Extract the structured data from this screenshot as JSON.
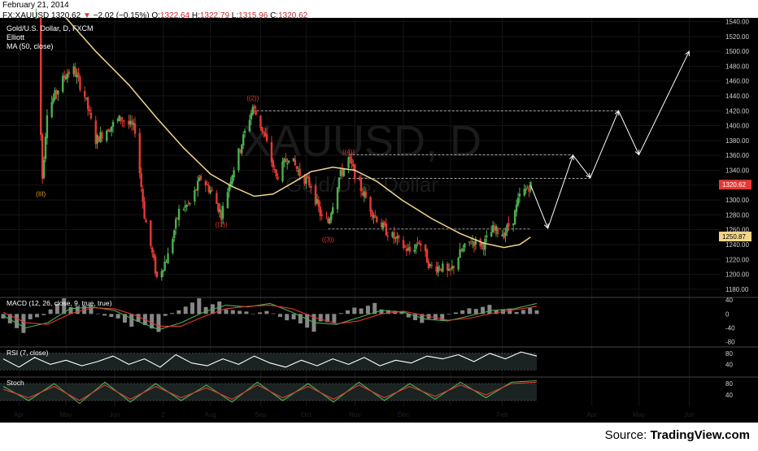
{
  "header": {
    "date": "February 21, 2014",
    "symbol": "FX:XAUUSD",
    "last": "1320.62",
    "change": "−2.02 (−0.15%)",
    "o_label": "O:",
    "o": "1322.64",
    "h_label": "H:",
    "h": "1322.79",
    "l_label": "L:",
    "l": "1315.96",
    "c_label": "C:",
    "c": "1320.62"
  },
  "panel": {
    "title": "Gold/U.S. Dollar, D, FXCM",
    "study1": "Elliott",
    "study2": "MA (50, close)",
    "watermark_big": "XAUUSD, D",
    "watermark_small": "Gold/U.S. Dollar"
  },
  "indicators": {
    "macd_label": "MACD (12, 26, close, 9, true, true)",
    "rsi_label": "RSI (7, close)",
    "stoch_label": "Stoch"
  },
  "source": {
    "prefix": "Source: ",
    "brand": "TradingView.com"
  },
  "colors": {
    "background": "#000000",
    "bull": "#4caf50",
    "bear": "#e53935",
    "ma": "#f2d58a",
    "wave_label": "#e53935",
    "wave_label_iii": "#f5a623",
    "macd_line": "#4caf50",
    "signal_line": "#e53935",
    "hist": "#9e9e9e",
    "rsi": "#ffffff",
    "stoch_k": "#4caf50",
    "stoch_d": "#e53935",
    "price_tag_last": "#e53935",
    "price_tag_ma": "#f2d58a"
  },
  "chart_data": [
    {
      "type": "candlestick",
      "title": "Gold/U.S. Dollar, D, FXCM",
      "x_ticks": [
        "Apr",
        "May",
        "Jun",
        "2",
        "Aug",
        "Sep",
        "Oct",
        "Nov",
        "Dec",
        "2014",
        "Feb",
        "Apr",
        "May",
        "Jun"
      ],
      "x_tick_dates": [
        "2013-04-01",
        "2013-05-01",
        "2013-06-01",
        "2013-07-02",
        "2013-08-01",
        "2013-09-02",
        "2013-10-01",
        "2013-11-01",
        "2013-12-02",
        "2014-01-01",
        "2014-02-03",
        "2014-04-01",
        "2014-05-01",
        "2014-06-02"
      ],
      "y_ticks": [
        1180,
        1200,
        1220,
        1240,
        1260,
        1280,
        1300,
        1320,
        1340,
        1360,
        1380,
        1400,
        1420,
        1440,
        1460,
        1480,
        1500,
        1520,
        1540
      ],
      "ylim": [
        1170,
        1545
      ],
      "last_price": "1320.62",
      "ma_value": "1250.87",
      "price_path": [
        [
          "2013-04-12",
          1560
        ],
        [
          "2013-04-16",
          1330
        ],
        [
          "2013-04-19",
          1420
        ],
        [
          "2013-05-01",
          1470
        ],
        [
          "2013-05-06",
          1475
        ],
        [
          "2013-05-13",
          1440
        ],
        [
          "2013-05-20",
          1380
        ],
        [
          "2013-05-27",
          1395
        ],
        [
          "2013-06-05",
          1410
        ],
        [
          "2013-06-14",
          1395
        ],
        [
          "2013-06-20",
          1280
        ],
        [
          "2013-06-28",
          1195
        ],
        [
          "2013-07-05",
          1225
        ],
        [
          "2013-07-12",
          1285
        ],
        [
          "2013-07-19",
          1295
        ],
        [
          "2013-07-26",
          1330
        ],
        [
          "2013-08-02",
          1310
        ],
        [
          "2013-08-08",
          1280
        ],
        [
          "2013-08-14",
          1330
        ],
        [
          "2013-08-20",
          1370
        ],
        [
          "2013-08-28",
          1425
        ],
        [
          "2013-09-04",
          1390
        ],
        [
          "2013-09-12",
          1330
        ],
        [
          "2013-09-20",
          1360
        ],
        [
          "2013-09-27",
          1335
        ],
        [
          "2013-10-04",
          1320
        ],
        [
          "2013-10-11",
          1275
        ],
        [
          "2013-10-15",
          1270
        ],
        [
          "2013-10-22",
          1330
        ],
        [
          "2013-10-28",
          1355
        ],
        [
          "2013-11-05",
          1315
        ],
        [
          "2013-11-12",
          1285
        ],
        [
          "2013-11-20",
          1260
        ],
        [
          "2013-11-28",
          1245
        ],
        [
          "2013-12-06",
          1230
        ],
        [
          "2013-12-12",
          1245
        ],
        [
          "2013-12-19",
          1210
        ],
        [
          "2013-12-26",
          1210
        ],
        [
          "2013-12-31",
          1200
        ],
        [
          "2014-01-07",
          1228
        ],
        [
          "2014-01-14",
          1245
        ],
        [
          "2014-01-22",
          1240
        ],
        [
          "2014-01-28",
          1260
        ],
        [
          "2014-02-04",
          1255
        ],
        [
          "2014-02-10",
          1275
        ],
        [
          "2014-02-14",
          1305
        ],
        [
          "2014-02-21",
          1320
        ]
      ],
      "ma_path": [
        [
          "2013-05-01",
          1545
        ],
        [
          "2013-05-20",
          1500
        ],
        [
          "2013-06-10",
          1455
        ],
        [
          "2013-06-28",
          1410
        ],
        [
          "2013-07-15",
          1370
        ],
        [
          "2013-08-01",
          1335
        ],
        [
          "2013-08-15",
          1318
        ],
        [
          "2013-08-29",
          1305
        ],
        [
          "2013-09-10",
          1308
        ],
        [
          "2013-09-24",
          1325
        ],
        [
          "2013-10-04",
          1338
        ],
        [
          "2013-10-18",
          1344
        ],
        [
          "2013-11-01",
          1340
        ],
        [
          "2013-11-15",
          1325
        ],
        [
          "2013-12-01",
          1300
        ],
        [
          "2013-12-20",
          1275
        ],
        [
          "2014-01-07",
          1255
        ],
        [
          "2014-01-22",
          1242
        ],
        [
          "2014-02-04",
          1236
        ],
        [
          "2014-02-14",
          1240
        ],
        [
          "2014-02-21",
          1250
        ]
      ],
      "wave_labels": [
        {
          "text": "(III)",
          "date": "2013-04-15",
          "price": 1305
        },
        {
          "text": "((1))",
          "date": "2013-08-08",
          "price": 1264
        },
        {
          "text": "((2))",
          "date": "2013-08-28",
          "price": 1434
        },
        {
          "text": "((3))",
          "date": "2013-10-15",
          "price": 1244
        },
        {
          "text": "((4))",
          "date": "2013-10-28",
          "price": 1362
        }
      ],
      "levels": [
        {
          "date_from": "2013-08-28",
          "date_to": "2014-04-18",
          "price": 1420
        },
        {
          "date_from": "2013-10-28",
          "date_to": "2014-03-20",
          "price": 1361
        },
        {
          "date_from": "2013-10-28",
          "date_to": "2014-03-31",
          "price": 1329
        },
        {
          "date_from": "2013-10-15",
          "date_to": "2014-02-21",
          "price": 1261
        }
      ],
      "projection": [
        [
          "2014-02-21",
          1320
        ],
        [
          "2014-03-04",
          1262
        ],
        [
          "2014-03-20",
          1360
        ],
        [
          "2014-03-31",
          1330
        ],
        [
          "2014-04-18",
          1420
        ],
        [
          "2014-05-01",
          1361
        ],
        [
          "2014-06-02",
          1500
        ]
      ]
    },
    {
      "type": "line",
      "title": "MACD (12, 26, close, 9, true, true)",
      "y_ticks": [
        40,
        0,
        -40,
        -80
      ],
      "ylim": [
        -90,
        45
      ],
      "series": [
        {
          "name": "MACD",
          "color": "#4caf50",
          "values": [
            -5,
            -40,
            -25,
            15,
            20,
            10,
            -20,
            -45,
            -25,
            5,
            25,
            20,
            30,
            5,
            -25,
            -30,
            -10,
            10,
            5,
            -15,
            -20,
            -5,
            10,
            15,
            30
          ]
        },
        {
          "name": "Signal",
          "color": "#e53935",
          "values": [
            5,
            -25,
            -30,
            0,
            18,
            15,
            -5,
            -35,
            -35,
            -8,
            15,
            22,
            25,
            15,
            -10,
            -28,
            -20,
            0,
            8,
            -5,
            -18,
            -12,
            2,
            12,
            22
          ]
        }
      ]
    },
    {
      "type": "line",
      "title": "RSI (7, close)",
      "y_ticks": [
        80,
        40
      ],
      "ylim": [
        0,
        100
      ],
      "band": [
        20,
        80
      ],
      "series": [
        {
          "name": "RSI",
          "values": [
            60,
            30,
            65,
            40,
            55,
            35,
            50,
            70,
            40,
            60,
            30,
            75,
            45,
            35,
            60,
            40,
            70,
            45,
            30,
            55,
            35,
            60,
            40,
            65,
            35,
            55,
            45,
            70,
            60,
            75,
            50,
            80,
            60,
            85,
            70
          ]
        }
      ]
    },
    {
      "type": "line",
      "title": "Stoch",
      "y_ticks": [
        80,
        40
      ],
      "ylim": [
        0,
        100
      ],
      "band": [
        20,
        80
      ],
      "series": [
        {
          "name": "%K",
          "color": "#4caf50",
          "values": [
            70,
            20,
            80,
            10,
            85,
            15,
            80,
            20,
            75,
            15,
            85,
            20,
            80,
            15,
            85,
            20,
            80,
            25,
            85,
            30,
            85,
            90
          ]
        },
        {
          "name": "%D",
          "color": "#e53935",
          "values": [
            60,
            30,
            70,
            20,
            75,
            25,
            70,
            30,
            65,
            25,
            75,
            30,
            70,
            25,
            75,
            30,
            70,
            35,
            75,
            40,
            80,
            85
          ]
        }
      ]
    }
  ]
}
